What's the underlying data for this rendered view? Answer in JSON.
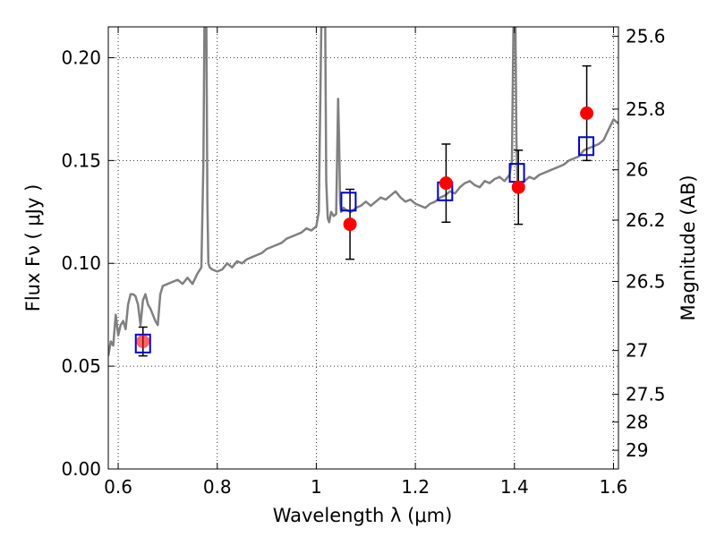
{
  "chart_data": {
    "type": "scatter",
    "title": "",
    "xlabel": "Wavelength  λ (μm)",
    "ylabel": "Flux  Fν  ( μJy )",
    "ylabel_right": "Magnitude (AB)",
    "xlim": [
      0.58,
      1.61
    ],
    "ylim": [
      0.0,
      0.215
    ],
    "grid": true,
    "x_ticks": [
      {
        "value": 0.6,
        "label": "0.6"
      },
      {
        "value": 0.8,
        "label": "0.8"
      },
      {
        "value": 1.0,
        "label": "1"
      },
      {
        "value": 1.2,
        "label": "1.2"
      },
      {
        "value": 1.4,
        "label": "1.4"
      },
      {
        "value": 1.6,
        "label": "1.6"
      }
    ],
    "y_ticks": [
      {
        "value": 0.0,
        "label": "0.00"
      },
      {
        "value": 0.05,
        "label": "0.05"
      },
      {
        "value": 0.1,
        "label": "0.10"
      },
      {
        "value": 0.15,
        "label": "0.15"
      },
      {
        "value": 0.2,
        "label": "0.20"
      }
    ],
    "right_ticks": [
      {
        "flux": 0.2104,
        "label": "25.6"
      },
      {
        "flux": 0.175,
        "label": "25.8"
      },
      {
        "flux": 0.1455,
        "label": "26"
      },
      {
        "flux": 0.121,
        "label": "26.2"
      },
      {
        "flux": 0.0912,
        "label": "26.5"
      },
      {
        "flux": 0.0576,
        "label": "27"
      },
      {
        "flux": 0.0363,
        "label": "27.5"
      },
      {
        "flux": 0.0229,
        "label": "28"
      },
      {
        "flux": 0.0091,
        "label": "29"
      }
    ],
    "series": [
      {
        "kind": "line",
        "color": "#808080",
        "x": [
          0.58,
          0.585,
          0.59,
          0.595,
          0.6,
          0.605,
          0.61,
          0.615,
          0.62,
          0.625,
          0.63,
          0.635,
          0.64,
          0.645,
          0.65,
          0.655,
          0.66,
          0.665,
          0.67,
          0.675,
          0.68,
          0.685,
          0.69,
          0.7,
          0.71,
          0.72,
          0.73,
          0.74,
          0.75,
          0.76,
          0.768,
          0.772,
          0.774,
          0.776,
          0.778,
          0.78,
          0.782,
          0.785,
          0.79,
          0.8,
          0.81,
          0.82,
          0.83,
          0.84,
          0.85,
          0.86,
          0.87,
          0.88,
          0.89,
          0.9,
          0.91,
          0.92,
          0.93,
          0.94,
          0.95,
          0.96,
          0.97,
          0.98,
          0.99,
          1.0,
          1.005,
          1.01,
          1.014,
          1.016,
          1.018,
          1.02,
          1.023,
          1.026,
          1.03,
          1.035,
          1.04,
          1.044,
          1.046,
          1.048,
          1.05,
          1.055,
          1.06,
          1.07,
          1.08,
          1.09,
          1.1,
          1.11,
          1.12,
          1.13,
          1.14,
          1.15,
          1.16,
          1.17,
          1.18,
          1.19,
          1.2,
          1.21,
          1.22,
          1.23,
          1.24,
          1.25,
          1.26,
          1.27,
          1.28,
          1.29,
          1.3,
          1.31,
          1.32,
          1.33,
          1.34,
          1.35,
          1.36,
          1.37,
          1.38,
          1.39,
          1.395,
          1.398,
          1.4,
          1.402,
          1.404,
          1.406,
          1.41,
          1.42,
          1.43,
          1.44,
          1.45,
          1.46,
          1.47,
          1.48,
          1.49,
          1.5,
          1.51,
          1.52,
          1.53,
          1.54,
          1.55,
          1.56,
          1.57,
          1.58,
          1.59,
          1.6,
          1.61
        ],
        "y": [
          0.055,
          0.062,
          0.06,
          0.075,
          0.065,
          0.07,
          0.072,
          0.068,
          0.08,
          0.085,
          0.085,
          0.084,
          0.08,
          0.07,
          0.082,
          0.085,
          0.08,
          0.078,
          0.075,
          0.072,
          0.07,
          0.085,
          0.089,
          0.09,
          0.091,
          0.092,
          0.09,
          0.093,
          0.09,
          0.095,
          0.098,
          0.15,
          0.215,
          0.215,
          0.215,
          0.13,
          0.1,
          0.098,
          0.097,
          0.096,
          0.097,
          0.1,
          0.098,
          0.101,
          0.1,
          0.102,
          0.103,
          0.104,
          0.105,
          0.107,
          0.108,
          0.109,
          0.11,
          0.112,
          0.113,
          0.114,
          0.115,
          0.117,
          0.116,
          0.118,
          0.125,
          0.215,
          0.215,
          0.215,
          0.215,
          0.14,
          0.122,
          0.12,
          0.125,
          0.123,
          0.124,
          0.18,
          0.16,
          0.13,
          0.125,
          0.127,
          0.126,
          0.125,
          0.127,
          0.128,
          0.13,
          0.128,
          0.13,
          0.132,
          0.131,
          0.133,
          0.135,
          0.132,
          0.13,
          0.131,
          0.129,
          0.128,
          0.127,
          0.129,
          0.13,
          0.132,
          0.133,
          0.135,
          0.134,
          0.137,
          0.139,
          0.14,
          0.138,
          0.137,
          0.14,
          0.139,
          0.141,
          0.142,
          0.14,
          0.143,
          0.15,
          0.215,
          0.215,
          0.215,
          0.16,
          0.14,
          0.138,
          0.14,
          0.142,
          0.141,
          0.143,
          0.144,
          0.145,
          0.146,
          0.147,
          0.148,
          0.15,
          0.151,
          0.152,
          0.155,
          0.156,
          0.157,
          0.158,
          0.16,
          0.165,
          0.17,
          0.168
        ]
      },
      {
        "kind": "open-squares",
        "color": "#0000cc",
        "x": [
          0.65,
          1.065,
          1.26,
          1.405,
          1.545
        ],
        "y": [
          0.061,
          0.13,
          0.135,
          0.144,
          0.157
        ]
      },
      {
        "kind": "filled-circles-with-errorbars",
        "color": "#ff0000",
        "x": [
          0.65,
          1.068,
          1.262,
          1.408,
          1.546
        ],
        "y": [
          0.062,
          0.119,
          0.139,
          0.137,
          0.173
        ],
        "yerr": [
          0.007,
          0.017,
          0.019,
          0.018,
          0.023
        ]
      }
    ]
  }
}
